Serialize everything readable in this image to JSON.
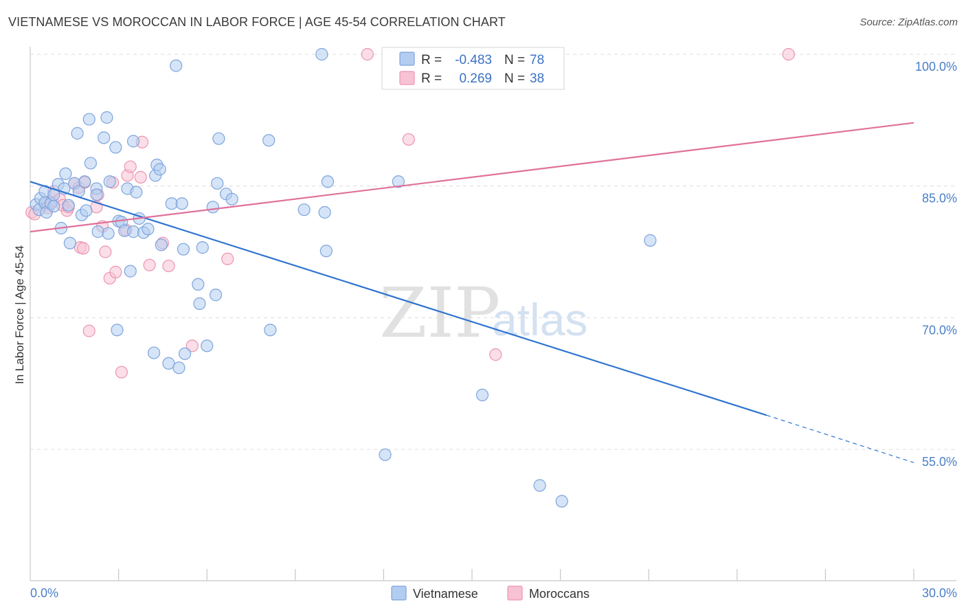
{
  "header": {
    "title": "VIETNAMESE VS MOROCCAN IN LABOR FORCE | AGE 45-54 CORRELATION CHART",
    "source": "Source: ZipAtlas.com"
  },
  "chart_data": {
    "type": "scatter",
    "title": "VIETNAMESE VS MOROCCAN IN LABOR FORCE | AGE 45-54 CORRELATION CHART",
    "xlabel": "",
    "ylabel": "In Labor Force | Age 45-54",
    "xlim": [
      0,
      30
    ],
    "ylim": [
      40,
      101
    ],
    "x_tick_labels": [
      "0.0%",
      "30.0%"
    ],
    "y_ticks": [
      55,
      70,
      85,
      100
    ],
    "y_tick_labels": [
      "55.0%",
      "70.0%",
      "85.0%",
      "100.0%"
    ],
    "grid": true,
    "watermark": {
      "zip": "ZIP",
      "atlas": "atlas"
    },
    "legend": {
      "placement": "top-center",
      "rows": [
        {
          "r_label": "R =",
          "r_value": "-0.483",
          "n_label": "N =",
          "n_value": "78"
        },
        {
          "r_label": "R =",
          "r_value": "0.269",
          "n_label": "N =",
          "n_value": "38"
        }
      ]
    },
    "bottom_legend": [
      "Vietnamese",
      "Moroccans"
    ],
    "colors": {
      "vietnamese_fill": "#b3cdf0",
      "vietnamese_stroke": "#7da4dd",
      "vietnamese_line": "#2f74d0",
      "moroccan_fill": "#f7c2d3",
      "moroccan_stroke": "#ec94b0",
      "moroccan_line": "#e0709a",
      "grid": "#dcdcdc",
      "tick_text": "#4a7fc8"
    },
    "series": [
      {
        "name": "Vietnamese",
        "r": -0.483,
        "n": 78,
        "trend": {
          "x0": 0.0,
          "y0": 85.5,
          "x1": 25.0,
          "y1": 58.9,
          "dash_x1": 30.0,
          "dash_y1": 53.5
        },
        "points": [
          [
            0.2,
            82.9
          ],
          [
            0.3,
            82.3
          ],
          [
            0.35,
            83.6
          ],
          [
            0.5,
            83.1
          ],
          [
            0.5,
            84.4
          ],
          [
            0.55,
            82.0
          ],
          [
            0.7,
            83.0
          ],
          [
            0.8,
            82.7
          ],
          [
            0.8,
            84.0
          ],
          [
            0.95,
            85.2
          ],
          [
            1.05,
            80.2
          ],
          [
            1.15,
            84.7
          ],
          [
            1.2,
            86.4
          ],
          [
            1.3,
            82.8
          ],
          [
            1.35,
            78.5
          ],
          [
            1.5,
            85.3
          ],
          [
            1.6,
            91.0
          ],
          [
            1.65,
            84.4
          ],
          [
            1.75,
            81.7
          ],
          [
            1.85,
            85.5
          ],
          [
            1.9,
            82.2
          ],
          [
            2.0,
            92.6
          ],
          [
            2.05,
            87.6
          ],
          [
            2.25,
            84.7
          ],
          [
            2.25,
            84.0
          ],
          [
            2.3,
            79.8
          ],
          [
            2.5,
            90.5
          ],
          [
            2.6,
            92.8
          ],
          [
            2.65,
            79.6
          ],
          [
            2.7,
            85.5
          ],
          [
            2.9,
            89.4
          ],
          [
            2.95,
            68.6
          ],
          [
            3.0,
            81.0
          ],
          [
            3.1,
            80.9
          ],
          [
            3.2,
            79.9
          ],
          [
            3.3,
            84.7
          ],
          [
            3.4,
            75.3
          ],
          [
            3.5,
            79.8
          ],
          [
            3.5,
            90.1
          ],
          [
            3.6,
            84.3
          ],
          [
            3.7,
            81.3
          ],
          [
            3.85,
            79.7
          ],
          [
            4.0,
            80.1
          ],
          [
            4.2,
            66.0
          ],
          [
            4.25,
            86.2
          ],
          [
            4.3,
            87.4
          ],
          [
            4.4,
            86.9
          ],
          [
            4.45,
            78.3
          ],
          [
            4.7,
            64.8
          ],
          [
            4.8,
            83.0
          ],
          [
            4.95,
            98.7
          ],
          [
            5.05,
            64.3
          ],
          [
            5.15,
            83.0
          ],
          [
            5.2,
            77.8
          ],
          [
            5.25,
            65.9
          ],
          [
            5.7,
            73.8
          ],
          [
            5.75,
            71.6
          ],
          [
            5.85,
            78.0
          ],
          [
            6.0,
            66.8
          ],
          [
            6.2,
            82.6
          ],
          [
            6.3,
            72.6
          ],
          [
            6.35,
            85.3
          ],
          [
            6.4,
            90.4
          ],
          [
            6.65,
            84.1
          ],
          [
            6.85,
            83.5
          ],
          [
            8.1,
            90.2
          ],
          [
            8.15,
            68.6
          ],
          [
            9.3,
            82.3
          ],
          [
            9.9,
            100.0
          ],
          [
            10.0,
            82.0
          ],
          [
            10.05,
            77.6
          ],
          [
            10.1,
            85.5
          ],
          [
            12.05,
            54.4
          ],
          [
            12.5,
            85.5
          ],
          [
            15.35,
            61.2
          ],
          [
            17.3,
            50.9
          ],
          [
            18.05,
            49.1
          ],
          [
            21.05,
            78.8
          ]
        ]
      },
      {
        "name": "Moroccans",
        "r": 0.269,
        "n": 38,
        "trend": {
          "x0": 0.0,
          "y0": 79.8,
          "x1": 30.0,
          "y1": 92.2
        },
        "points": [
          [
            0.05,
            82.0
          ],
          [
            0.15,
            81.8
          ],
          [
            0.5,
            82.9
          ],
          [
            0.6,
            82.5
          ],
          [
            0.7,
            83.2
          ],
          [
            0.8,
            84.4
          ],
          [
            1.0,
            83.5
          ],
          [
            1.1,
            82.8
          ],
          [
            1.25,
            82.2
          ],
          [
            1.3,
            82.6
          ],
          [
            1.5,
            85.3
          ],
          [
            1.65,
            84.8
          ],
          [
            1.7,
            78.0
          ],
          [
            1.8,
            77.9
          ],
          [
            1.85,
            85.4
          ],
          [
            2.0,
            68.5
          ],
          [
            2.25,
            82.6
          ],
          [
            2.3,
            84.0
          ],
          [
            2.45,
            80.4
          ],
          [
            2.55,
            77.5
          ],
          [
            2.7,
            74.5
          ],
          [
            2.8,
            85.4
          ],
          [
            2.9,
            75.2
          ],
          [
            3.1,
            63.8
          ],
          [
            3.25,
            80.0
          ],
          [
            3.3,
            86.2
          ],
          [
            3.4,
            87.2
          ],
          [
            3.75,
            86.0
          ],
          [
            3.8,
            90.0
          ],
          [
            4.05,
            76.0
          ],
          [
            4.5,
            78.5
          ],
          [
            4.7,
            75.9
          ],
          [
            5.5,
            66.8
          ],
          [
            6.7,
            76.7
          ],
          [
            11.45,
            100.0
          ],
          [
            12.85,
            90.3
          ],
          [
            15.8,
            65.8
          ],
          [
            25.75,
            100.0
          ]
        ]
      }
    ]
  }
}
